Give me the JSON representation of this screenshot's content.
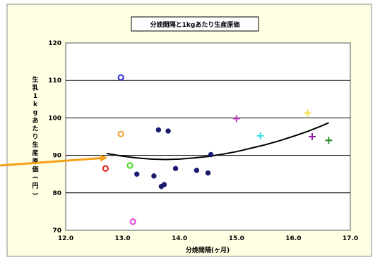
{
  "chart_data": {
    "type": "scatter",
    "title": "分娩間隔と1kgあたり生産原価",
    "xlabel": "分娩間隔(ヶ月)",
    "ylabel": "生乳1kgあたり生産原価(円)",
    "xlim": [
      12.0,
      17.0
    ],
    "ylim": [
      70,
      120
    ],
    "xticks": [
      "12.0",
      "13.0",
      "14.0",
      "15.0",
      "16.0",
      "17.0"
    ],
    "yticks": [
      "70",
      "80",
      "90",
      "100",
      "110",
      "120"
    ],
    "grid": "horizontal",
    "series": [
      {
        "marker": "circle-filled",
        "color": "#1a1a6e",
        "points": [
          {
            "x": 13.25,
            "y": 85.0
          },
          {
            "x": 13.55,
            "y": 84.5
          },
          {
            "x": 13.63,
            "y": 96.8
          },
          {
            "x": 13.68,
            "y": 81.7
          },
          {
            "x": 13.73,
            "y": 82.2
          },
          {
            "x": 13.8,
            "y": 96.5
          },
          {
            "x": 13.93,
            "y": 86.5
          },
          {
            "x": 14.3,
            "y": 86.0
          },
          {
            "x": 14.5,
            "y": 85.3
          },
          {
            "x": 14.55,
            "y": 90.2
          }
        ]
      },
      {
        "marker": "circle-open",
        "color": "#2b2bd6",
        "points": [
          {
            "x": 12.97,
            "y": 110.8
          }
        ]
      },
      {
        "marker": "circle-open",
        "color": "#f0a030",
        "points": [
          {
            "x": 12.97,
            "y": 95.7
          }
        ]
      },
      {
        "marker": "circle-open",
        "color": "#e02020",
        "points": [
          {
            "x": 12.7,
            "y": 86.5
          }
        ]
      },
      {
        "marker": "circle-open",
        "color": "#44dd22",
        "points": [
          {
            "x": 13.13,
            "y": 87.3
          }
        ]
      },
      {
        "marker": "circle-open",
        "color": "#e040d0",
        "points": [
          {
            "x": 13.18,
            "y": 72.3
          }
        ]
      },
      {
        "marker": "plus",
        "color": "#c040c0",
        "points": [
          {
            "x": 15.0,
            "y": 99.8
          }
        ]
      },
      {
        "marker": "plus",
        "color": "#30e0e0",
        "points": [
          {
            "x": 15.42,
            "y": 95.2
          }
        ]
      },
      {
        "marker": "plus",
        "color": "#f0e040",
        "points": [
          {
            "x": 16.25,
            "y": 101.3
          }
        ]
      },
      {
        "marker": "plus",
        "color": "#9020a0",
        "points": [
          {
            "x": 16.33,
            "y": 95.0
          }
        ]
      },
      {
        "marker": "plus",
        "color": "#2a8a2a",
        "points": [
          {
            "x": 16.62,
            "y": 94.0
          }
        ]
      }
    ],
    "trendline": {
      "type": "polynomial",
      "x": [
        12.72,
        13.0,
        13.25,
        13.5,
        13.75,
        14.0,
        14.25,
        14.5,
        14.75,
        15.0,
        15.25,
        15.5,
        15.75,
        16.0,
        16.25,
        16.5,
        16.62
      ],
      "y": [
        90.5,
        89.8,
        89.3,
        89.0,
        88.9,
        89.0,
        89.3,
        89.7,
        90.3,
        91.0,
        91.9,
        92.8,
        93.9,
        95.1,
        96.4,
        97.9,
        98.7
      ]
    },
    "annotation": "arrow",
    "colors": {
      "chart_bg": "#ffffe4",
      "plot_bg": "#ffffff",
      "arrow": "#f59f17",
      "trend": "#000000"
    }
  }
}
